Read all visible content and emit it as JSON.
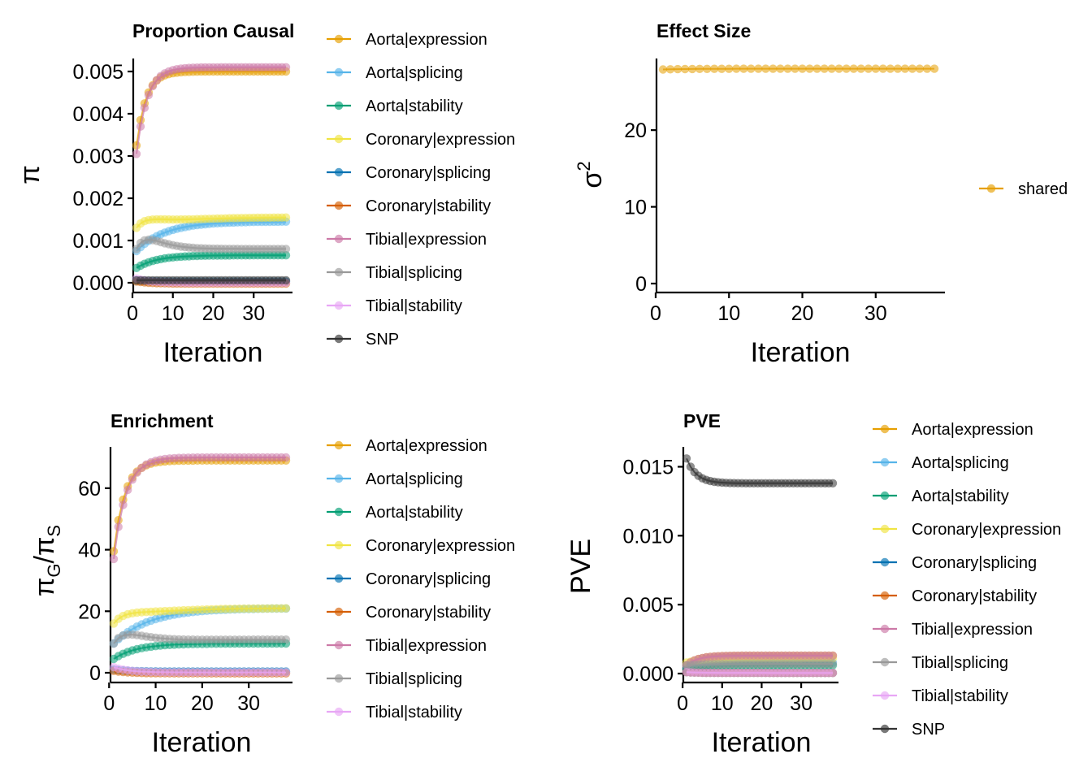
{
  "colors": {
    "Aorta|expression": "#E69F00",
    "Aorta|splicing": "#56B4E9",
    "Aorta|stability": "#009E73",
    "Coronary|expression": "#F0E442",
    "Coronary|splicing": "#0072B2",
    "Coronary|stability": "#D55E00",
    "Tibial|expression": "#CC79A7",
    "Tibial|splicing": "#999999",
    "Tibial|stability": "#E8A6F5",
    "SNP": "#333333",
    "shared": "#E69F00"
  },
  "chart_data": [
    {
      "type": "line",
      "title": "Proportion Causal",
      "xlabel": "Iteration",
      "ylabel": "π",
      "xlim": [
        1,
        38
      ],
      "ylim": [
        0,
        0.005
      ],
      "xticks": [
        0,
        10,
        20,
        30
      ],
      "yticks": [
        "0.000",
        "0.001",
        "0.002",
        "0.003",
        "0.004",
        "0.005"
      ],
      "legend": [
        "Aorta|expression",
        "Aorta|splicing",
        "Aorta|stability",
        "Coronary|expression",
        "Coronary|splicing",
        "Coronary|stability",
        "Tibial|expression",
        "Tibial|splicing",
        "Tibial|stability",
        "SNP"
      ],
      "series": [
        {
          "name": "Aorta|expression",
          "start": 0.00325,
          "end": 0.005,
          "rate": 0.42
        },
        {
          "name": "Aorta|splicing",
          "start": 0.00075,
          "end": 0.00145,
          "rate": 0.14
        },
        {
          "name": "Aorta|stability",
          "start": 0.00035,
          "end": 0.00065,
          "rate": 0.2
        },
        {
          "name": "Coronary|expression",
          "start": 0.0013,
          "end": 0.00155,
          "rate": 0.1,
          "bump": 0.00012
        },
        {
          "name": "Coronary|splicing",
          "start": 5e-05,
          "end": 3e-05,
          "rate": 0.3
        },
        {
          "name": "Coronary|stability",
          "start": 3e-05,
          "end": -2e-05,
          "rate": 0.3
        },
        {
          "name": "Tibial|expression",
          "start": 0.00305,
          "end": 0.0051,
          "rate": 0.38
        },
        {
          "name": "Tibial|splicing",
          "start": 0.0008,
          "end": 0.0008,
          "rate": 0.1,
          "bump": 0.00022
        },
        {
          "name": "Tibial|stability",
          "start": 0.0001,
          "end": 0.0,
          "rate": 0.3
        },
        {
          "name": "SNP",
          "start": 6e-05,
          "end": 6e-05,
          "rate": 0.3
        }
      ]
    },
    {
      "type": "line",
      "title": "Effect Size",
      "xlabel": "Iteration",
      "ylabel": "σ²",
      "ylabel_base": "σ",
      "ylabel_sup": "2",
      "xlim": [
        1,
        38
      ],
      "ylim": [
        0,
        28
      ],
      "xticks": [
        0,
        10,
        20,
        30
      ],
      "yticks": [
        "0",
        "10",
        "20"
      ],
      "legend": [
        "shared"
      ],
      "series": [
        {
          "name": "shared",
          "start": 27.9,
          "end": 28.0,
          "rate": 0.3
        }
      ]
    },
    {
      "type": "line",
      "title": "Enrichment",
      "xlabel": "Iteration",
      "ylabel": "πG/πS",
      "ylabel_parts": [
        "π",
        "G",
        "/π",
        "S"
      ],
      "xlim": [
        1,
        38
      ],
      "ylim": [
        0,
        70
      ],
      "xticks": [
        0,
        10,
        20,
        30
      ],
      "yticks": [
        "0",
        "20",
        "40",
        "60"
      ],
      "legend": [
        "Aorta|expression",
        "Aorta|splicing",
        "Aorta|stability",
        "Coronary|expression",
        "Coronary|splicing",
        "Coronary|stability",
        "Tibial|expression",
        "Tibial|splicing",
        "Tibial|stability"
      ],
      "series": [
        {
          "name": "Aorta|expression",
          "start": 39.5,
          "end": 69.0,
          "rate": 0.42
        },
        {
          "name": "Aorta|splicing",
          "start": 9.5,
          "end": 21.0,
          "rate": 0.13
        },
        {
          "name": "Aorta|stability",
          "start": 4.5,
          "end": 9.5,
          "rate": 0.2
        },
        {
          "name": "Coronary|expression",
          "start": 16.0,
          "end": 21.0,
          "rate": 0.12,
          "bump": 1.5
        },
        {
          "name": "Coronary|splicing",
          "start": 1.0,
          "end": 0.4,
          "rate": 0.3
        },
        {
          "name": "Coronary|stability",
          "start": 0.6,
          "end": -0.2,
          "rate": 0.3
        },
        {
          "name": "Tibial|expression",
          "start": 37.0,
          "end": 70.0,
          "rate": 0.38
        },
        {
          "name": "Tibial|splicing",
          "start": 9.5,
          "end": 10.8,
          "rate": 0.12,
          "bump": 2.5
        },
        {
          "name": "Tibial|stability",
          "start": 1.8,
          "end": 0.1,
          "rate": 0.3
        }
      ]
    },
    {
      "type": "line",
      "title": "PVE",
      "xlabel": "Iteration",
      "ylabel": "PVE",
      "xlim": [
        1,
        38
      ],
      "ylim": [
        0,
        0.0155
      ],
      "xticks": [
        0,
        10,
        20,
        30
      ],
      "yticks": [
        "0.000",
        "0.005",
        "0.010",
        "0.015"
      ],
      "legend": [
        "Aorta|expression",
        "Aorta|splicing",
        "Aorta|stability",
        "Coronary|expression",
        "Coronary|splicing",
        "Coronary|stability",
        "Tibial|expression",
        "Tibial|splicing",
        "Tibial|stability",
        "SNP"
      ],
      "series": [
        {
          "name": "Aorta|expression",
          "start": 0.0006,
          "end": 0.0013,
          "rate": 0.35
        },
        {
          "name": "Aorta|splicing",
          "start": 0.0004,
          "end": 0.0008,
          "rate": 0.2
        },
        {
          "name": "Aorta|stability",
          "start": 0.0003,
          "end": 0.0006,
          "rate": 0.2
        },
        {
          "name": "Coronary|expression",
          "start": 0.0008,
          "end": 0.0011,
          "rate": 0.2
        },
        {
          "name": "Coronary|splicing",
          "start": 0.0001,
          "end": 5e-05,
          "rate": 0.3
        },
        {
          "name": "Coronary|stability",
          "start": 0.0001,
          "end": 5e-05,
          "rate": 0.3
        },
        {
          "name": "Tibial|expression",
          "start": 0.0006,
          "end": 0.0013,
          "rate": 0.35
        },
        {
          "name": "Tibial|splicing",
          "start": 0.0006,
          "end": 0.0007,
          "rate": 0.2
        },
        {
          "name": "Tibial|stability",
          "start": 0.0001,
          "end": 5e-05,
          "rate": 0.3
        },
        {
          "name": "SNP",
          "start": 0.0156,
          "end": 0.0138,
          "rate": 0.4
        }
      ]
    }
  ]
}
